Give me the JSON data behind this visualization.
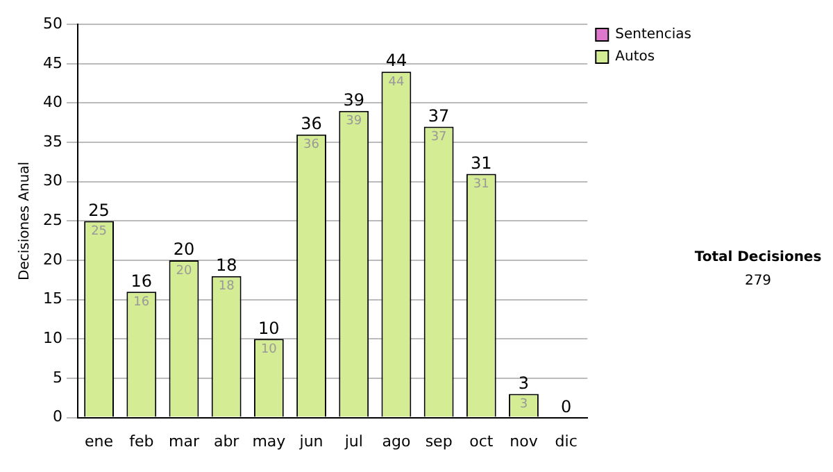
{
  "chart_data": {
    "type": "bar",
    "ylabel": "Decisiones Anual",
    "categories": [
      "ene",
      "feb",
      "mar",
      "abr",
      "may",
      "jun",
      "jul",
      "ago",
      "sep",
      "oct",
      "nov",
      "dic"
    ],
    "series": [
      {
        "name": "Sentencias",
        "color": "#dd77cc",
        "values": [
          0,
          0,
          0,
          0,
          0,
          0,
          0,
          0,
          0,
          0,
          0,
          0
        ]
      },
      {
        "name": "Autos",
        "color": "#d4ec94",
        "values": [
          25,
          16,
          20,
          18,
          10,
          36,
          39,
          44,
          37,
          31,
          3,
          0
        ],
        "value_labels": [
          "25",
          "16",
          "20",
          "18",
          "10",
          "36",
          "39",
          "44",
          "37",
          "31",
          "3",
          null
        ]
      }
    ],
    "stacked": true,
    "totals": [
      "25",
      "16",
      "20",
      "18",
      "10",
      "36",
      "39",
      "44",
      "37",
      "31",
      "3",
      "0"
    ],
    "ylim": [
      0,
      50
    ],
    "yticks": [
      0,
      5,
      10,
      15,
      20,
      25,
      30,
      35,
      40,
      45,
      50
    ],
    "grid": "y",
    "legend": "right",
    "annotations": [
      "Total Decisiones",
      "279"
    ]
  }
}
